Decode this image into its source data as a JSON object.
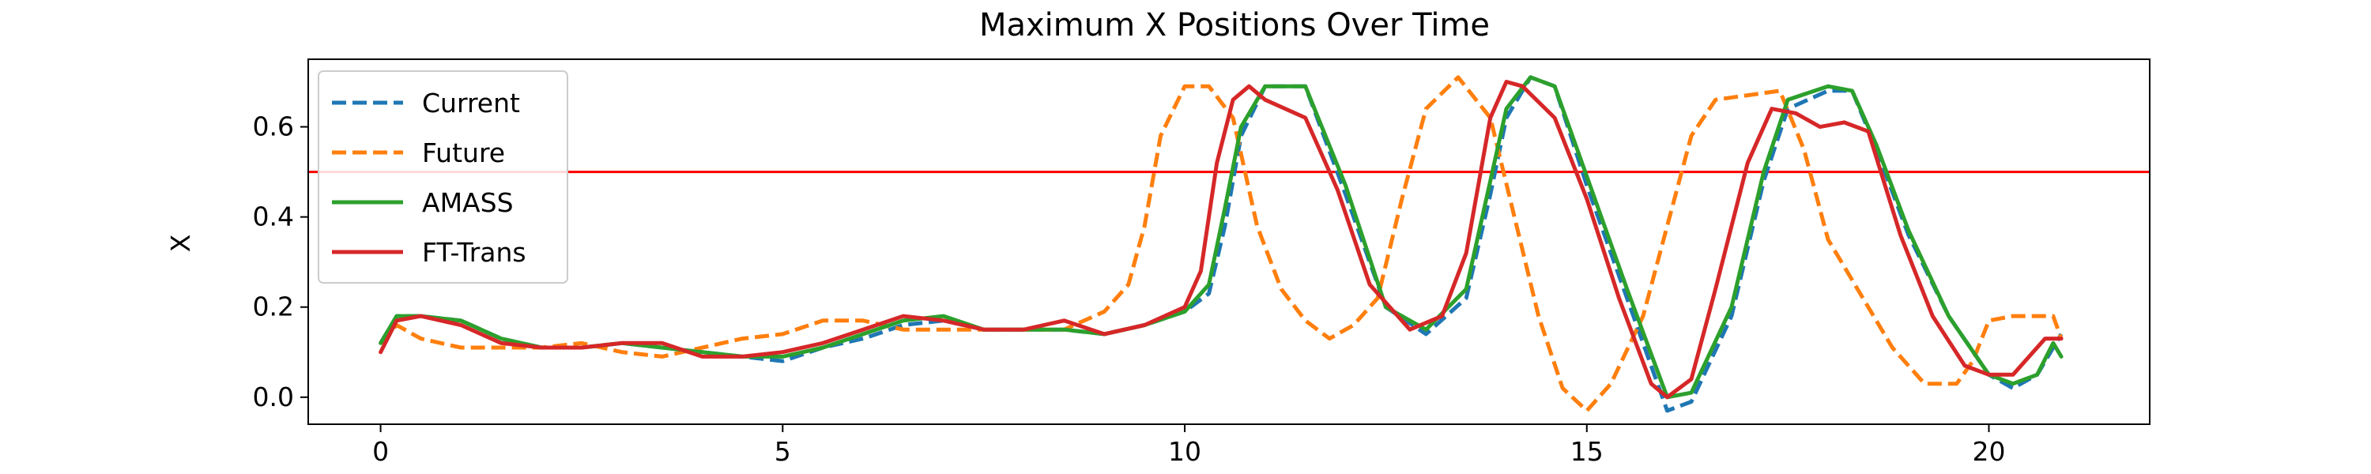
{
  "chart_data": {
    "type": "line",
    "title": "Maximum X Positions Over Time",
    "xlabel": "",
    "ylabel": "X",
    "xlim": [
      -0.9,
      22
    ],
    "ylim": [
      -0.06,
      0.75
    ],
    "xticks": [
      0,
      5,
      10,
      15,
      20
    ],
    "yticks": [
      0.0,
      0.2,
      0.4,
      0.6
    ],
    "ytick_labels": [
      "0.0",
      "0.2",
      "0.4",
      "0.6"
    ],
    "grid": false,
    "legend_position": "upper-left",
    "threshold": {
      "y": 0.5,
      "color": "#ff0000"
    },
    "series": [
      {
        "name": "Current",
        "color": "#1f77b4",
        "dash": true,
        "points": [
          [
            0,
            0.12
          ],
          [
            0.2,
            0.18
          ],
          [
            0.5,
            0.18
          ],
          [
            1.0,
            0.17
          ],
          [
            1.5,
            0.13
          ],
          [
            2.0,
            0.11
          ],
          [
            2.5,
            0.11
          ],
          [
            3.0,
            0.12
          ],
          [
            3.5,
            0.11
          ],
          [
            4.0,
            0.1
          ],
          [
            4.5,
            0.09
          ],
          [
            5.0,
            0.08
          ],
          [
            5.5,
            0.11
          ],
          [
            6.0,
            0.13
          ],
          [
            6.5,
            0.16
          ],
          [
            7.0,
            0.17
          ],
          [
            7.5,
            0.15
          ],
          [
            8.0,
            0.15
          ],
          [
            8.5,
            0.15
          ],
          [
            9.0,
            0.14
          ],
          [
            9.5,
            0.16
          ],
          [
            10.0,
            0.19
          ],
          [
            10.3,
            0.23
          ],
          [
            10.5,
            0.38
          ],
          [
            10.7,
            0.58
          ],
          [
            11.0,
            0.69
          ],
          [
            11.5,
            0.69
          ],
          [
            12.0,
            0.45
          ],
          [
            12.5,
            0.2
          ],
          [
            13.0,
            0.14
          ],
          [
            13.5,
            0.22
          ],
          [
            13.8,
            0.45
          ],
          [
            14.0,
            0.62
          ],
          [
            14.3,
            0.71
          ],
          [
            14.6,
            0.69
          ],
          [
            15.0,
            0.47
          ],
          [
            15.5,
            0.22
          ],
          [
            16.0,
            -0.03
          ],
          [
            16.3,
            -0.01
          ],
          [
            16.8,
            0.18
          ],
          [
            17.2,
            0.48
          ],
          [
            17.5,
            0.64
          ],
          [
            18.0,
            0.68
          ],
          [
            18.3,
            0.68
          ],
          [
            18.6,
            0.55
          ],
          [
            19.0,
            0.36
          ],
          [
            19.5,
            0.18
          ],
          [
            20.0,
            0.05
          ],
          [
            20.3,
            0.02
          ],
          [
            20.6,
            0.05
          ],
          [
            20.9,
            0.14
          ]
        ]
      },
      {
        "name": "Future",
        "color": "#ff7f0e",
        "dash": true,
        "points": [
          [
            0,
            0.12
          ],
          [
            0.2,
            0.16
          ],
          [
            0.5,
            0.13
          ],
          [
            1.0,
            0.11
          ],
          [
            1.5,
            0.11
          ],
          [
            2.0,
            0.11
          ],
          [
            2.5,
            0.12
          ],
          [
            3.0,
            0.1
          ],
          [
            3.5,
            0.09
          ],
          [
            4.0,
            0.11
          ],
          [
            4.5,
            0.13
          ],
          [
            5.0,
            0.14
          ],
          [
            5.5,
            0.17
          ],
          [
            6.0,
            0.17
          ],
          [
            6.5,
            0.15
          ],
          [
            7.0,
            0.15
          ],
          [
            7.5,
            0.15
          ],
          [
            8.0,
            0.15
          ],
          [
            8.5,
            0.15
          ],
          [
            9.0,
            0.19
          ],
          [
            9.3,
            0.25
          ],
          [
            9.5,
            0.38
          ],
          [
            9.7,
            0.58
          ],
          [
            10.0,
            0.69
          ],
          [
            10.3,
            0.69
          ],
          [
            10.6,
            0.62
          ],
          [
            10.9,
            0.38
          ],
          [
            11.2,
            0.24
          ],
          [
            11.5,
            0.17
          ],
          [
            11.8,
            0.13
          ],
          [
            12.1,
            0.16
          ],
          [
            12.4,
            0.22
          ],
          [
            12.7,
            0.44
          ],
          [
            13.0,
            0.64
          ],
          [
            13.4,
            0.71
          ],
          [
            13.8,
            0.62
          ],
          [
            14.1,
            0.4
          ],
          [
            14.4,
            0.18
          ],
          [
            14.7,
            0.02
          ],
          [
            15.0,
            -0.03
          ],
          [
            15.3,
            0.03
          ],
          [
            15.7,
            0.18
          ],
          [
            16.0,
            0.38
          ],
          [
            16.3,
            0.58
          ],
          [
            16.6,
            0.66
          ],
          [
            17.0,
            0.67
          ],
          [
            17.4,
            0.68
          ],
          [
            17.7,
            0.55
          ],
          [
            18.0,
            0.35
          ],
          [
            18.4,
            0.23
          ],
          [
            18.8,
            0.11
          ],
          [
            19.2,
            0.03
          ],
          [
            19.6,
            0.03
          ],
          [
            19.8,
            0.08
          ],
          [
            20.0,
            0.17
          ],
          [
            20.3,
            0.18
          ],
          [
            20.6,
            0.18
          ],
          [
            20.8,
            0.18
          ],
          [
            20.9,
            0.13
          ]
        ]
      },
      {
        "name": "AMASS",
        "color": "#2ca02c",
        "dash": false,
        "points": [
          [
            0,
            0.12
          ],
          [
            0.2,
            0.18
          ],
          [
            0.5,
            0.18
          ],
          [
            1.0,
            0.17
          ],
          [
            1.5,
            0.13
          ],
          [
            2.0,
            0.11
          ],
          [
            2.5,
            0.11
          ],
          [
            3.0,
            0.12
          ],
          [
            3.5,
            0.11
          ],
          [
            4.0,
            0.1
          ],
          [
            4.5,
            0.09
          ],
          [
            5.0,
            0.09
          ],
          [
            5.5,
            0.11
          ],
          [
            6.0,
            0.14
          ],
          [
            6.5,
            0.17
          ],
          [
            7.0,
            0.18
          ],
          [
            7.5,
            0.15
          ],
          [
            8.0,
            0.15
          ],
          [
            8.5,
            0.15
          ],
          [
            9.0,
            0.14
          ],
          [
            9.5,
            0.16
          ],
          [
            10.0,
            0.19
          ],
          [
            10.3,
            0.25
          ],
          [
            10.5,
            0.42
          ],
          [
            10.7,
            0.6
          ],
          [
            11.0,
            0.69
          ],
          [
            11.5,
            0.69
          ],
          [
            12.0,
            0.47
          ],
          [
            12.5,
            0.2
          ],
          [
            13.0,
            0.15
          ],
          [
            13.5,
            0.24
          ],
          [
            13.8,
            0.48
          ],
          [
            14.0,
            0.64
          ],
          [
            14.3,
            0.71
          ],
          [
            14.6,
            0.69
          ],
          [
            15.0,
            0.49
          ],
          [
            15.5,
            0.24
          ],
          [
            16.0,
            0.0
          ],
          [
            16.3,
            0.01
          ],
          [
            16.8,
            0.2
          ],
          [
            17.2,
            0.5
          ],
          [
            17.5,
            0.66
          ],
          [
            18.0,
            0.69
          ],
          [
            18.3,
            0.68
          ],
          [
            18.6,
            0.56
          ],
          [
            19.0,
            0.37
          ],
          [
            19.5,
            0.18
          ],
          [
            20.0,
            0.05
          ],
          [
            20.3,
            0.03
          ],
          [
            20.6,
            0.05
          ],
          [
            20.8,
            0.12
          ],
          [
            20.9,
            0.09
          ]
        ]
      },
      {
        "name": "FT-Trans",
        "color": "#d62728",
        "dash": false,
        "points": [
          [
            0,
            0.1
          ],
          [
            0.2,
            0.17
          ],
          [
            0.5,
            0.18
          ],
          [
            1.0,
            0.16
          ],
          [
            1.5,
            0.12
          ],
          [
            2.0,
            0.11
          ],
          [
            2.5,
            0.11
          ],
          [
            3.0,
            0.12
          ],
          [
            3.5,
            0.12
          ],
          [
            4.0,
            0.09
          ],
          [
            4.5,
            0.09
          ],
          [
            5.0,
            0.1
          ],
          [
            5.5,
            0.12
          ],
          [
            6.0,
            0.15
          ],
          [
            6.5,
            0.18
          ],
          [
            7.0,
            0.17
          ],
          [
            7.5,
            0.15
          ],
          [
            8.0,
            0.15
          ],
          [
            8.5,
            0.17
          ],
          [
            9.0,
            0.14
          ],
          [
            9.5,
            0.16
          ],
          [
            10.0,
            0.2
          ],
          [
            10.2,
            0.28
          ],
          [
            10.4,
            0.52
          ],
          [
            10.6,
            0.66
          ],
          [
            10.8,
            0.69
          ],
          [
            11.0,
            0.66
          ],
          [
            11.5,
            0.62
          ],
          [
            11.9,
            0.46
          ],
          [
            12.3,
            0.25
          ],
          [
            12.8,
            0.15
          ],
          [
            13.2,
            0.18
          ],
          [
            13.5,
            0.32
          ],
          [
            13.8,
            0.62
          ],
          [
            14.0,
            0.7
          ],
          [
            14.2,
            0.69
          ],
          [
            14.6,
            0.62
          ],
          [
            15.0,
            0.44
          ],
          [
            15.4,
            0.22
          ],
          [
            15.8,
            0.03
          ],
          [
            16.0,
            0.0
          ],
          [
            16.3,
            0.04
          ],
          [
            16.6,
            0.24
          ],
          [
            17.0,
            0.52
          ],
          [
            17.3,
            0.64
          ],
          [
            17.6,
            0.63
          ],
          [
            17.9,
            0.6
          ],
          [
            18.2,
            0.61
          ],
          [
            18.5,
            0.59
          ],
          [
            18.9,
            0.36
          ],
          [
            19.3,
            0.18
          ],
          [
            19.7,
            0.07
          ],
          [
            20.0,
            0.05
          ],
          [
            20.3,
            0.05
          ],
          [
            20.7,
            0.13
          ],
          [
            20.9,
            0.13
          ]
        ]
      }
    ],
    "legend": [
      "Current",
      "Future",
      "AMASS",
      "FT-Trans"
    ]
  }
}
